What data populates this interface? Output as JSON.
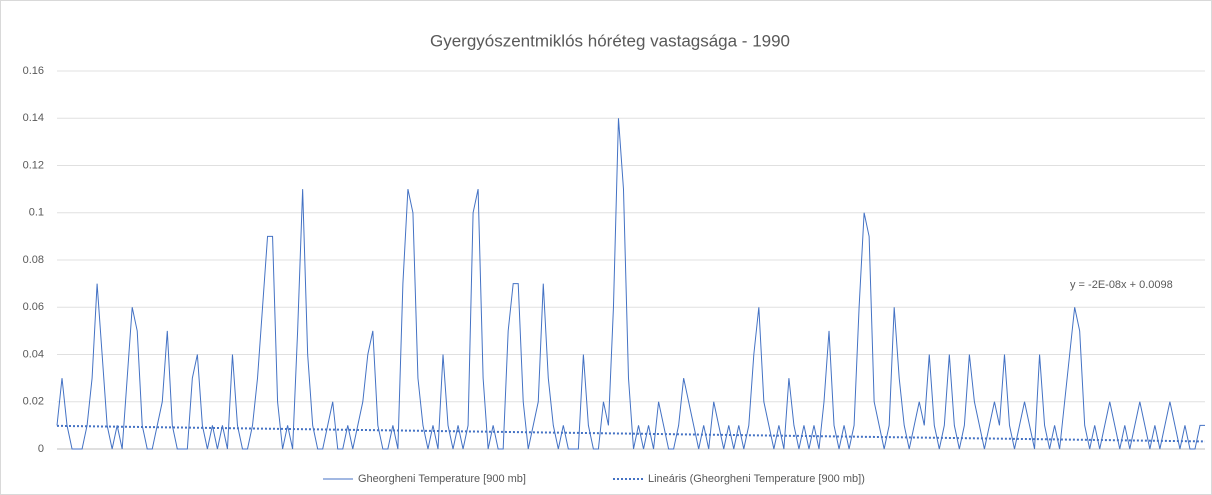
{
  "chart_data": {
    "type": "line",
    "title": "Gyergyószentmiklós hóréteg vastagsága - 1990",
    "categories": [
      null,
      null,
      null,
      null,
      null,
      null,
      null,
      null,
      null,
      null,
      null,
      null,
      null,
      null,
      null,
      null,
      null,
      null,
      null,
      null,
      null,
      null,
      null,
      null,
      null,
      null,
      null,
      null,
      null,
      null,
      null,
      null,
      null,
      null,
      null,
      null,
      null,
      null,
      null,
      null,
      null,
      null,
      null,
      null,
      null,
      null,
      null,
      null,
      null,
      null,
      null,
      null,
      null,
      null,
      null,
      null,
      null,
      null,
      null,
      null,
      null,
      null,
      null,
      null,
      null,
      null,
      null,
      null,
      null,
      null,
      null,
      null,
      null,
      null,
      null,
      null,
      null,
      null,
      null,
      null,
      null,
      null,
      null,
      null,
      null,
      null,
      null,
      null,
      null,
      null,
      null,
      null,
      null,
      null,
      null,
      null,
      null,
      null,
      null,
      null,
      null,
      null,
      null,
      null,
      null,
      null,
      null,
      null,
      null,
      null,
      null,
      null,
      null,
      null,
      null,
      null,
      null,
      null,
      null,
      null,
      null,
      null,
      null,
      null,
      null,
      null,
      null,
      null,
      null,
      null,
      null,
      null,
      null,
      null,
      null,
      null,
      null,
      null,
      null,
      null,
      null,
      null,
      null,
      null,
      null,
      null,
      null,
      null,
      null,
      null,
      null,
      null,
      null,
      null,
      null,
      null,
      null,
      null,
      null,
      null,
      null,
      null,
      null,
      null,
      null,
      null,
      null,
      null,
      null,
      null,
      null,
      null,
      null,
      null,
      null,
      null,
      null,
      null,
      null,
      null,
      null,
      null,
      null,
      null,
      null,
      null,
      null,
      null,
      null,
      null,
      null,
      null,
      null,
      null,
      null,
      null,
      null,
      null,
      null,
      null,
      null,
      null,
      null,
      null,
      null,
      null,
      null,
      null,
      null,
      null,
      null,
      null,
      null,
      null,
      null,
      null,
      null,
      null,
      null,
      null,
      null,
      null,
      null,
      null,
      null,
      null,
      null,
      null,
      null,
      null
    ],
    "series": [
      {
        "name": "Gheorgheni Temperature [900 mb]",
        "color": "#4472c4",
        "values": [
          0.01,
          0.03,
          0.01,
          0,
          0,
          0,
          0.01,
          0.03,
          0.07,
          0.04,
          0.01,
          0,
          0.01,
          0,
          0.03,
          0.06,
          0.05,
          0.01,
          0,
          0,
          0.01,
          0.02,
          0.05,
          0.01,
          0,
          0,
          0,
          0.03,
          0.04,
          0.01,
          0,
          0.01,
          0,
          0.01,
          0,
          0.04,
          0.01,
          0,
          0,
          0.01,
          0.03,
          0.06,
          0.09,
          0.09,
          0.02,
          0,
          0.01,
          0,
          0.05,
          0.11,
          0.04,
          0.01,
          0,
          0,
          0.01,
          0.02,
          0,
          0,
          0.01,
          0,
          0.01,
          0.02,
          0.04,
          0.05,
          0.01,
          0,
          0,
          0.01,
          0,
          0.07,
          0.11,
          0.1,
          0.03,
          0.01,
          0,
          0.01,
          0,
          0.04,
          0.01,
          0,
          0.01,
          0,
          0.01,
          0.1,
          0.11,
          0.03,
          0,
          0.01,
          0,
          0,
          0.05,
          0.07,
          0.07,
          0.02,
          0,
          0.01,
          0.02,
          0.07,
          0.03,
          0.01,
          0,
          0.01,
          0,
          0,
          0,
          0.04,
          0.01,
          0,
          0,
          0.02,
          0.01,
          0.06,
          0.14,
          0.11,
          0.03,
          0,
          0.01,
          0,
          0.01,
          0,
          0.02,
          0.01,
          0,
          0,
          0.01,
          0.03,
          0.02,
          0.01,
          0,
          0.01,
          0,
          0.02,
          0.01,
          0,
          0.01,
          0,
          0.01,
          0,
          0.01,
          0.04,
          0.06,
          0.02,
          0.01,
          0,
          0.01,
          0,
          0.03,
          0.01,
          0,
          0.01,
          0,
          0.01,
          0,
          0.02,
          0.05,
          0.01,
          0,
          0.01,
          0,
          0.01,
          0.06,
          0.1,
          0.09,
          0.02,
          0.01,
          0,
          0.01,
          0.06,
          0.03,
          0.01,
          0,
          0.01,
          0.02,
          0.01,
          0.04,
          0.01,
          0,
          0.01,
          0.04,
          0.01,
          0,
          0.01,
          0.04,
          0.02,
          0.01,
          0,
          0.01,
          0.02,
          0.01,
          0.04,
          0.01,
          0,
          0.01,
          0.02,
          0.01,
          0,
          0.04,
          0.01,
          0,
          0.01,
          0,
          0.02,
          0.04,
          0.06,
          0.05,
          0.01,
          0,
          0.01,
          0,
          0.01,
          0.02,
          0.01,
          0,
          0.01,
          0,
          0.01,
          0.02,
          0.01,
          0,
          0.01,
          0,
          0.01,
          0.02,
          0.01,
          0,
          0.01,
          0,
          0,
          0.01,
          0.01
        ]
      }
    ],
    "trendline": {
      "name": "Lineáris (Gheorgheni Temperature [900 mb])",
      "color": "#4472c4",
      "values": [
        0.0098,
        0.0032
      ],
      "label": "y = -2E-08x + 0.0098"
    },
    "ylim": [
      0,
      0.16
    ],
    "yticks": [
      0,
      0.02,
      0.04,
      0.06,
      0.08,
      0.1,
      0.12,
      0.14,
      0.16
    ],
    "grid": true,
    "legend": "bottom"
  }
}
